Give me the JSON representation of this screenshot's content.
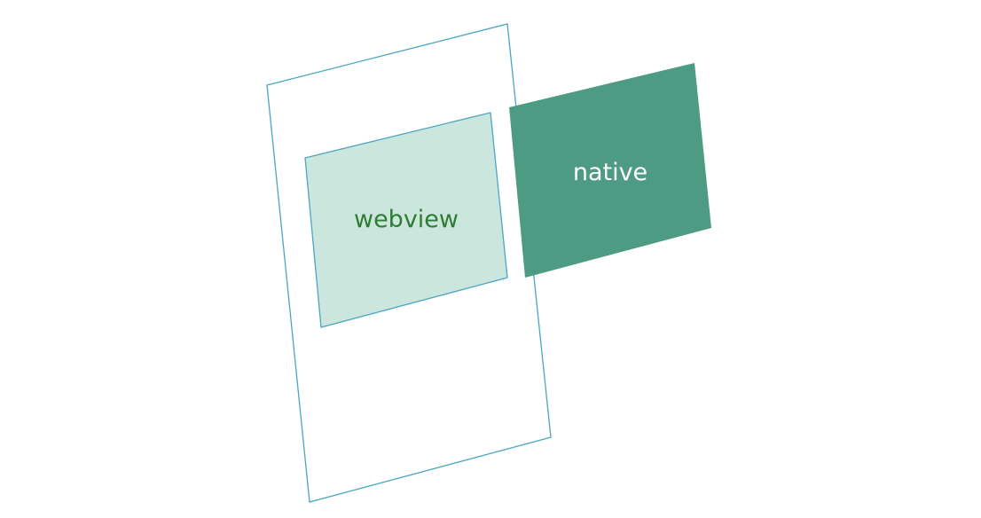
{
  "diagram": {
    "webview_label": "webview",
    "native_label": "native"
  },
  "colors": {
    "device_outline": "#4aa6c4",
    "webview_fill": "#cbe6dc",
    "webview_stroke": "#4aa6c4",
    "webview_text": "#2e7d32",
    "native_fill": "#4e9b84",
    "native_text": "#ffffff"
  }
}
